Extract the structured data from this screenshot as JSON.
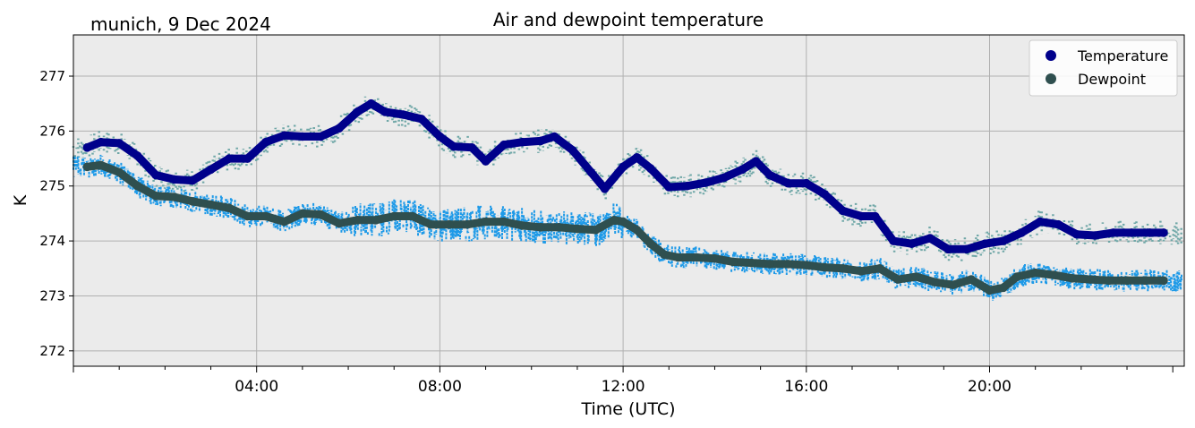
{
  "chart_data": {
    "type": "scatter",
    "title": "Air and dewpoint temperature",
    "location_date": "munich, 9 Dec 2024",
    "xlabel": "Time (UTC)",
    "ylabel": "K",
    "x_unit": "hours (UTC)",
    "xlim": [
      0,
      24.25
    ],
    "ylim": [
      271.72,
      277.75
    ],
    "xticks": [
      {
        "value": 4,
        "label": "04:00"
      },
      {
        "value": 8,
        "label": "08:00"
      },
      {
        "value": 12,
        "label": "12:00"
      },
      {
        "value": 16,
        "label": "16:00"
      },
      {
        "value": 20,
        "label": "20:00"
      }
    ],
    "yticks": [
      272,
      273,
      274,
      275,
      276,
      277
    ],
    "grid": true,
    "background": "#ebebeb",
    "legend": {
      "position": "top-right"
    },
    "series": [
      {
        "name": "Temperature",
        "color": "#00008b",
        "raw_color": "#6fa7a7",
        "x": [
          0.3,
          0.6,
          1.0,
          1.4,
          1.8,
          2.2,
          2.6,
          3.0,
          3.4,
          3.8,
          4.2,
          4.6,
          5.0,
          5.4,
          5.8,
          6.2,
          6.5,
          6.8,
          7.2,
          7.6,
          8.0,
          8.3,
          8.7,
          9.0,
          9.4,
          9.8,
          10.2,
          10.5,
          10.9,
          11.3,
          11.6,
          12.0,
          12.3,
          12.6,
          13.0,
          13.4,
          13.8,
          14.2,
          14.6,
          14.9,
          15.2,
          15.6,
          16.0,
          16.4,
          16.8,
          17.2,
          17.5,
          17.9,
          18.3,
          18.7,
          19.1,
          19.5,
          19.9,
          20.3,
          20.7,
          21.1,
          21.5,
          21.9,
          22.3,
          22.7,
          23.1,
          23.5,
          23.8
        ],
        "values": [
          275.7,
          275.8,
          275.78,
          275.55,
          275.2,
          275.12,
          275.1,
          275.3,
          275.5,
          275.5,
          275.8,
          275.92,
          275.9,
          275.9,
          276.05,
          276.35,
          276.5,
          276.35,
          276.3,
          276.22,
          275.9,
          275.72,
          275.7,
          275.45,
          275.75,
          275.8,
          275.82,
          275.9,
          275.65,
          275.25,
          274.95,
          275.35,
          275.52,
          275.32,
          274.98,
          275.0,
          275.06,
          275.15,
          275.3,
          275.45,
          275.2,
          275.05,
          275.05,
          274.85,
          274.55,
          274.45,
          274.45,
          274.0,
          273.95,
          274.05,
          273.85,
          273.85,
          273.95,
          274.0,
          274.15,
          274.35,
          274.3,
          274.12,
          274.1,
          274.15,
          274.15,
          274.15,
          274.15
        ]
      },
      {
        "name": "Dewpoint",
        "color": "#2f4f4f",
        "raw_color": "#1e9ae8",
        "x": [
          0.3,
          0.6,
          1.0,
          1.4,
          1.8,
          2.2,
          2.6,
          3.0,
          3.4,
          3.8,
          4.2,
          4.6,
          5.0,
          5.4,
          5.8,
          6.2,
          6.6,
          7.0,
          7.4,
          7.8,
          8.2,
          8.6,
          9.0,
          9.4,
          9.8,
          10.2,
          10.6,
          11.0,
          11.4,
          11.8,
          12.0,
          12.3,
          12.6,
          12.9,
          13.2,
          13.6,
          14.0,
          14.4,
          14.8,
          15.2,
          15.6,
          16.0,
          16.4,
          16.8,
          17.2,
          17.6,
          18.0,
          18.4,
          18.8,
          19.2,
          19.6,
          20.0,
          20.3,
          20.6,
          21.0,
          21.4,
          21.8,
          22.2,
          22.6,
          23.0,
          23.4,
          23.8
        ],
        "values": [
          275.35,
          275.38,
          275.25,
          275.0,
          274.82,
          274.8,
          274.72,
          274.66,
          274.6,
          274.45,
          274.45,
          274.35,
          274.5,
          274.48,
          274.32,
          274.38,
          274.38,
          274.45,
          274.45,
          274.3,
          274.3,
          274.3,
          274.35,
          274.35,
          274.28,
          274.25,
          274.25,
          274.22,
          274.2,
          274.38,
          274.35,
          274.2,
          273.95,
          273.75,
          273.7,
          273.7,
          273.68,
          273.62,
          273.6,
          273.58,
          273.58,
          273.56,
          273.52,
          273.5,
          273.45,
          273.5,
          273.3,
          273.35,
          273.25,
          273.2,
          273.3,
          273.1,
          273.15,
          273.35,
          273.42,
          273.38,
          273.32,
          273.3,
          273.28,
          273.28,
          273.28,
          273.28
        ]
      }
    ]
  }
}
